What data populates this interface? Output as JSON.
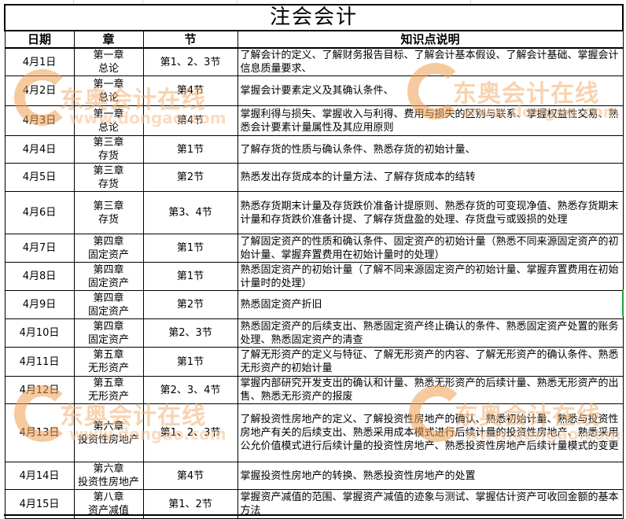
{
  "title": "注会会计",
  "headers": {
    "date": "日期",
    "chapter": "章",
    "section": "节",
    "points": "知识点说明"
  },
  "rows": [
    {
      "date": "4月1日",
      "chapter_no": "第一章",
      "chapter_name": "总论",
      "section": "第1、2、3节",
      "points": "了解会计的定义、了解财务报告目标、了解会计基本假设、了解会计基础、掌握会计信息质量要求、"
    },
    {
      "date": "4月2日",
      "chapter_no": "第一章",
      "chapter_name": "总论",
      "section": "第4节",
      "points": "掌握会计要素定义及其确认条件、"
    },
    {
      "date": "4月3日",
      "chapter_no": "第一章",
      "chapter_name": "总论",
      "section": "第4节",
      "points": "掌握利得与损失、掌握收入与利得、费用与损失的区别与联系、掌握权益性交易、熟悉会计要素计量属性及其应用原则"
    },
    {
      "date": "4月4日",
      "chapter_no": "第三章",
      "chapter_name": "存货",
      "section": "第1节",
      "points": "了解存货的性质与确认条件、熟悉存货的初始计量、"
    },
    {
      "date": "4月5日",
      "chapter_no": "第三章",
      "chapter_name": "存货",
      "section": "第2节",
      "points": "熟悉发出存货成本的计量方法、了解存货成本的结转"
    },
    {
      "date": "4月6日",
      "chapter_no": "第三章",
      "chapter_name": "存货",
      "section": "第3、4节",
      "points": "熟悉存货期末计量及存货跌价准备计提原则、熟悉存货的可变现净值、熟悉存货期末计量和存货跌价准备计提、了解存货盘盈的处理、存货盘亏或毁损的处理"
    },
    {
      "date": "4月7日",
      "chapter_no": "第四章",
      "chapter_name": "固定资产",
      "section": "第1节",
      "points": "了解固定资产的性质和确认条件、固定资产的初始计量（熟悉不同来源固定资产的初始计量、掌握弃置费用在初始计量时的处理）"
    },
    {
      "date": "4月8日",
      "chapter_no": "第四章",
      "chapter_name": "固定资产",
      "section": "第1节",
      "points": "熟悉固定资产的初始计量（了解不同来源固定资产的初始计量、掌握弃置费用在初始计量时的处理）"
    },
    {
      "date": "4月9日",
      "chapter_no": "第四章",
      "chapter_name": "固定资产",
      "section": "第2节",
      "points": "熟悉固定资产折旧"
    },
    {
      "date": "4月10日",
      "chapter_no": "第四章",
      "chapter_name": "固定资产",
      "section": "第2、3节",
      "points": "熟悉固定资产的后续支出、熟悉固定资产终止确认的条件、熟悉固定资产处置的账务处理、熟悉固定资产的清查"
    },
    {
      "date": "4月11日",
      "chapter_no": "第五章",
      "chapter_name": "无形资产",
      "section": "第1节",
      "points": "了解无形资产的定义与特征、了解无形资产的内容、了解无形资产的确认条件、熟悉无形资产的初始计量"
    },
    {
      "date": "4月12日",
      "chapter_no": "第五章",
      "chapter_name": "无形资产",
      "section": "第2、3、4节",
      "points": "掌握内部研究开发支出的确认和计量、熟悉无形资产的后续计量、熟悉无形资产的出售、熟悉无形资产的报废"
    },
    {
      "date": "4月13日",
      "chapter_no": "第六章",
      "chapter_name": "投资性房地产",
      "section": "第1、2、3节",
      "points": "了解投资性房地产的定义、了解投资性房地产的确认、熟悉初始计量、熟悉与投资性房地产有关的后续支出、熟悉采用成本模式进行后续计量的投资性房地产、熟悉采用公允价值模式进行后续计量的投资性房地产、熟悉投资性房地产后续计量模式的变更"
    },
    {
      "date": "4月14日",
      "chapter_no": "第六章",
      "chapter_name": "投资性房地产",
      "section": "第4节",
      "points": "掌握投资性房地产的转换、熟悉投资性房地产的处置"
    },
    {
      "date": "4月15日",
      "chapter_no": "第八章",
      "chapter_name": "资产减值",
      "section": "第1、2节",
      "points": "掌握资产减值的范围、掌握资产减值的迹象与测试、掌握估计资产可收回金额的基本方法"
    }
  ],
  "watermark": {
    "brand": "东奥会计在线",
    "url": "www.dongao.com",
    "color": "#f0a050"
  }
}
